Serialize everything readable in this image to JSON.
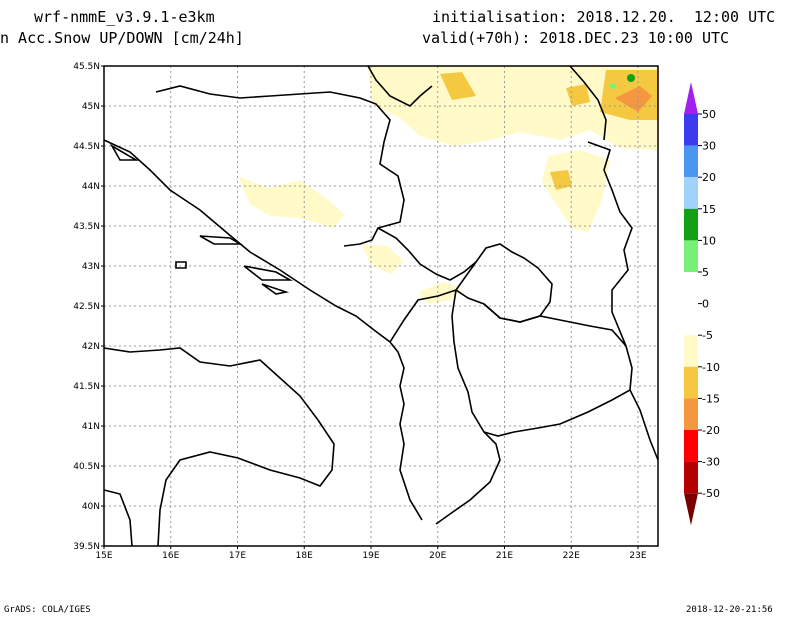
{
  "header": {
    "model": "wrf-nmmE_v3.9.1-e3km",
    "variable": "n Acc.Snow UP/DOWN [cm/24h]",
    "init": "initialisation: 2018.12.20.  12:00 UTC",
    "valid": "valid(+70h): 2018.DEC.23 10:00 UTC"
  },
  "footer": {
    "left": "GrADS: COLA/IGES",
    "right": "2018-12-20-21:56"
  },
  "map": {
    "lat_labels": [
      "45.5N",
      "45N",
      "44.5N",
      "44N",
      "43.5N",
      "43N",
      "42.5N",
      "42N",
      "41.5N",
      "41N",
      "40.5N",
      "40N",
      "39.5N"
    ],
    "lon_labels": [
      "15E",
      "16E",
      "17E",
      "18E",
      "19E",
      "20E",
      "21E",
      "22E",
      "23E"
    ],
    "grid": true
  },
  "colorbar": {
    "labels": [
      "50",
      "30",
      "20",
      "15",
      "10",
      "5",
      "0",
      "-5",
      "-10",
      "-15",
      "-20",
      "-30",
      "-50"
    ],
    "colors": {
      "top_triangle": "#a020f0",
      "c1": "#3b3bf0",
      "c2": "#4a96f0",
      "c3": "#a0d2fa",
      "c4": "#14a014",
      "c5": "#78f078",
      "c6": "#ffffff",
      "c7": "#ffffff",
      "c8": "#fffac8",
      "c9": "#f5c841",
      "c10": "#f59641",
      "c11": "#ff0000",
      "c12": "#b40000",
      "bottom_triangle": "#7a0000"
    }
  }
}
